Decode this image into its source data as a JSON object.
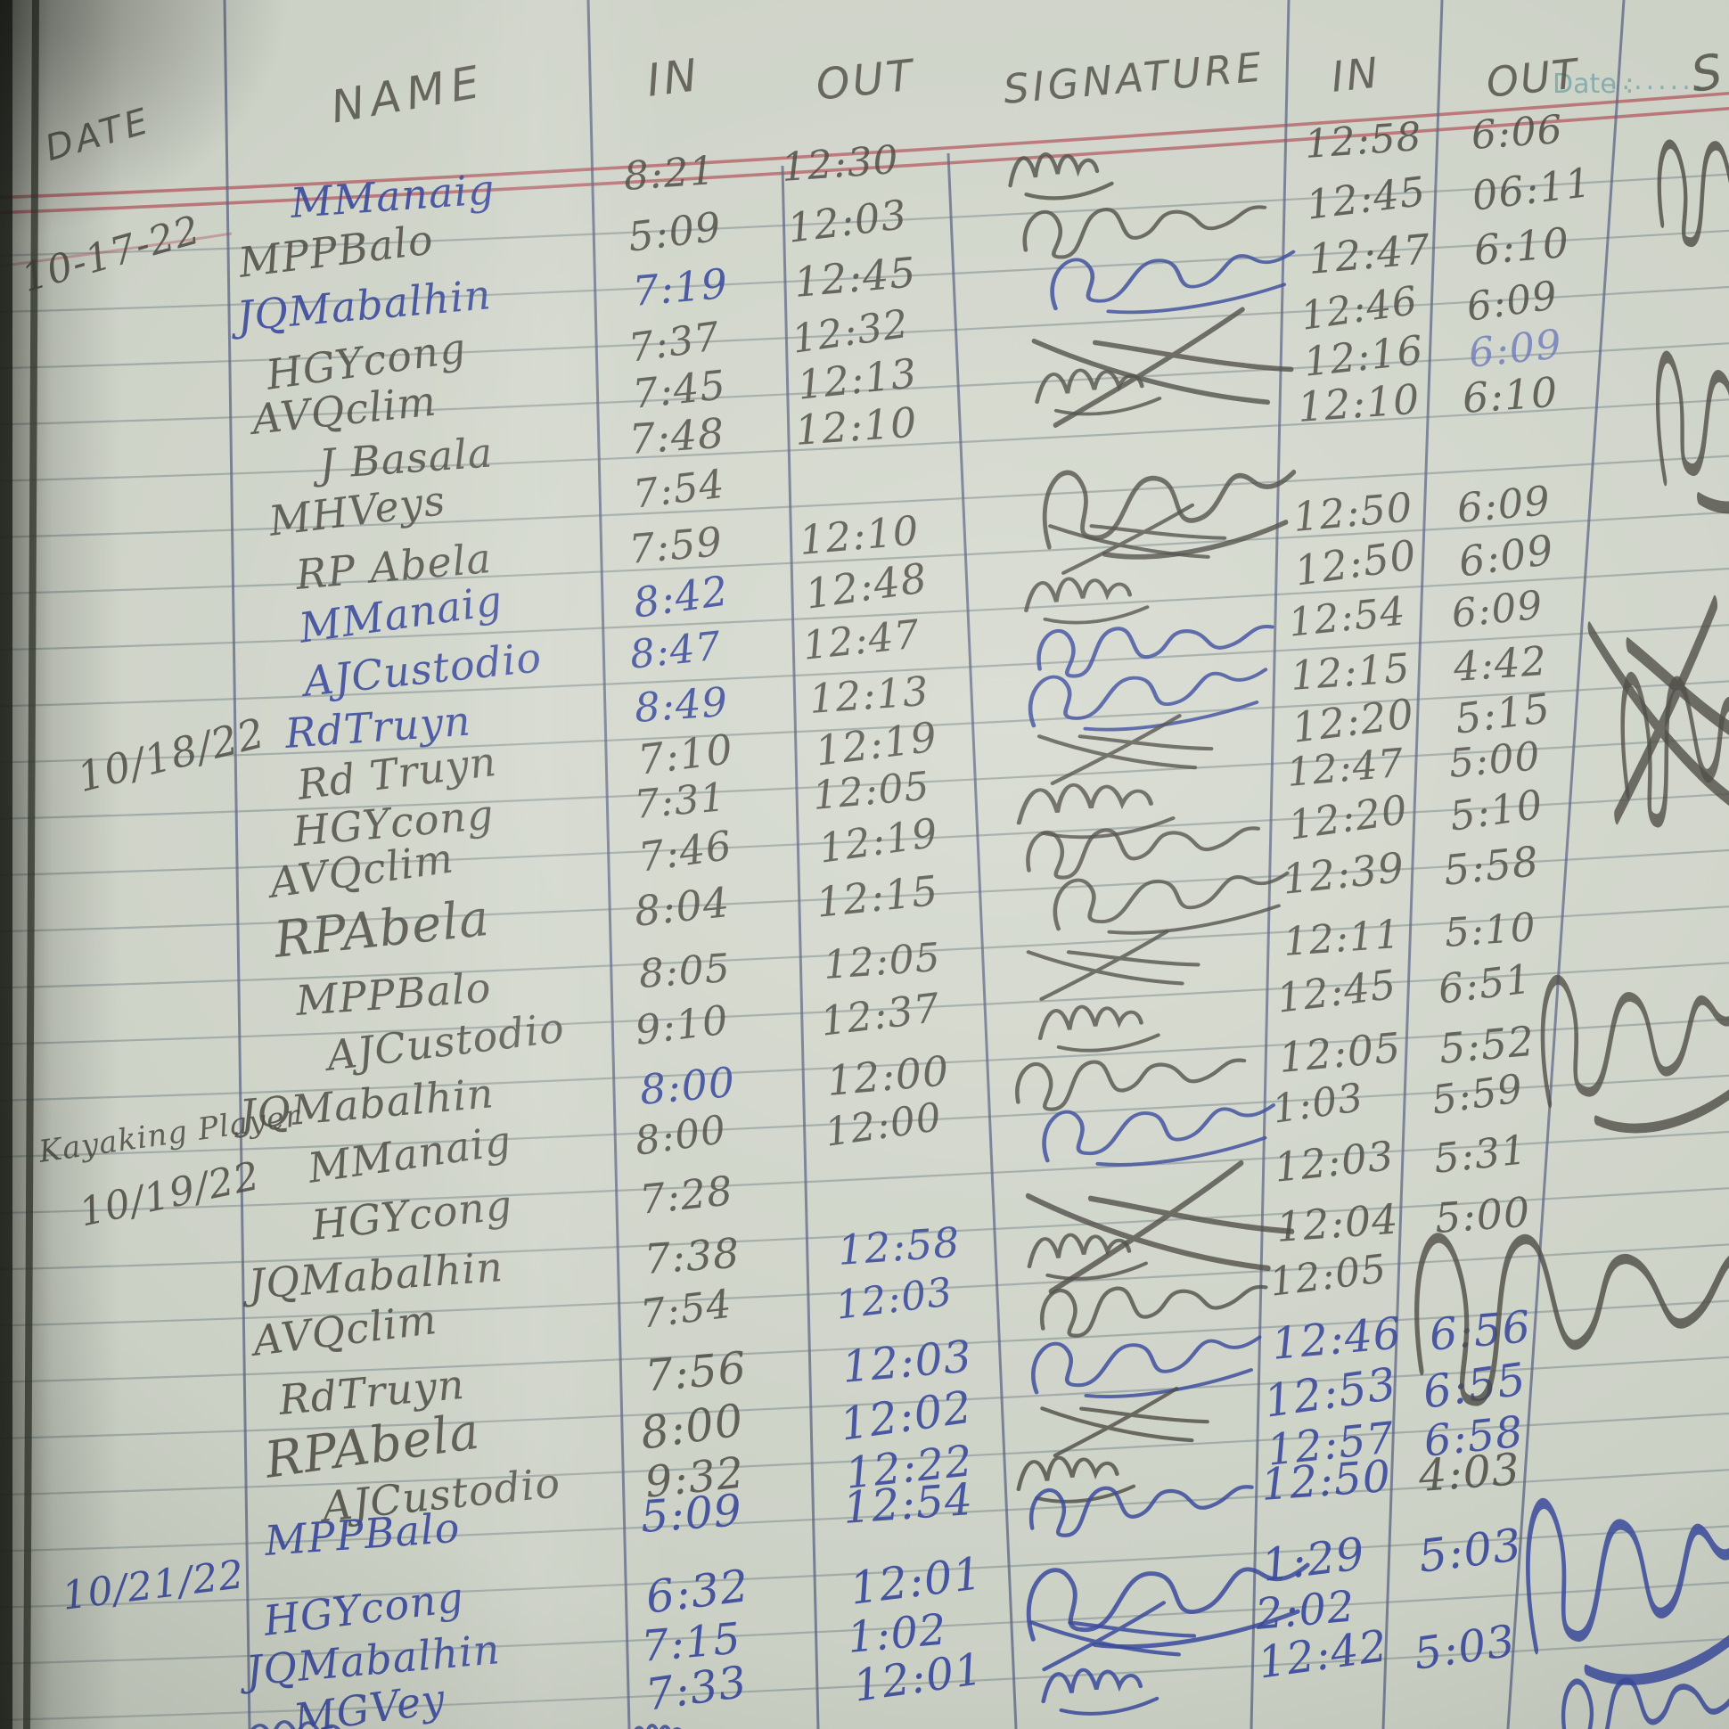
{
  "headers": {
    "date": "DATE",
    "name": "NAME",
    "in1": "IN",
    "out1": "OUT",
    "signature": "SIGNATURE",
    "in2": "IN",
    "out2": "OUT",
    "right_partial": "S"
  },
  "printed": {
    "date_label": "Date :",
    "dots": "........"
  },
  "side_labels": {
    "kayaking": "Kayaking Player"
  },
  "date_marks": [
    "10-17-22",
    "10/18/22",
    "10/19/22",
    "10/21/22"
  ],
  "palette": {
    "paper": "#ccd1c6",
    "pencil_ink": "#4a4942",
    "pen_blue_ink": "#3a4a9b",
    "light_blue_ink": "#6673b8",
    "rule_line": "#95a09e",
    "red_margin_line": "#b5656a",
    "column_line": "#5a6384",
    "printed_teal": "#6fa0a4"
  },
  "rows": [
    {
      "name": {
        "t": "MManaig",
        "ink": "b"
      },
      "in1": {
        "t": "8:21",
        "ink": "d"
      },
      "out1": {
        "t": "12:30",
        "ink": "d"
      },
      "sig": true,
      "sig_ink": "d",
      "in2": {
        "t": "12:58",
        "ink": "d"
      },
      "out2": {
        "t": "6:06",
        "ink": "d"
      }
    },
    {
      "name": {
        "t": "MPPBalo",
        "ink": "d"
      },
      "in1": {
        "t": "5:09",
        "ink": "d"
      },
      "out1": {
        "t": "12:03",
        "ink": "d"
      },
      "sig": true,
      "sig_ink": "d",
      "in2": {
        "t": "12:45",
        "ink": "d"
      },
      "out2": {
        "t": "06:11",
        "ink": "d"
      }
    },
    {
      "name": {
        "t": "JQMabalhin",
        "ink": "b"
      },
      "in1": {
        "t": "7:19",
        "ink": "b"
      },
      "out1": {
        "t": "12:45",
        "ink": "d"
      },
      "sig": true,
      "sig_ink": "b",
      "in2": {
        "t": "12:47",
        "ink": "d"
      },
      "out2": {
        "t": "6:10",
        "ink": "d"
      }
    },
    {
      "name": {
        "t": "HGYcong",
        "ink": "d"
      },
      "in1": {
        "t": "7:37",
        "ink": "d"
      },
      "out1": {
        "t": "12:32",
        "ink": "d"
      },
      "sig": true,
      "sig_ink": "d",
      "in2": {
        "t": "12:46",
        "ink": "d"
      },
      "out2": {
        "t": "6:09",
        "ink": "d"
      }
    },
    {
      "name": {
        "t": "AVQclim",
        "ink": "d"
      },
      "in1": {
        "t": "7:45",
        "ink": "d"
      },
      "out1": {
        "t": "12:13",
        "ink": "d"
      },
      "sig": true,
      "sig_ink": "d",
      "in2": {
        "t": "12:16",
        "ink": "d"
      },
      "out2": {
        "t": "6:09",
        "ink": "lb"
      }
    },
    {
      "name": {
        "t": "J Basala",
        "ink": "d"
      },
      "in1": {
        "t": "7:48",
        "ink": "d"
      },
      "out1": {
        "t": "12:10",
        "ink": "d"
      },
      "sig": false,
      "sig_ink": "d",
      "in2": {
        "t": "12:10",
        "ink": "d"
      },
      "out2": {
        "t": "6:10",
        "ink": "d"
      }
    },
    {
      "name": {
        "t": "MHVeys",
        "ink": "d"
      },
      "in1": {
        "t": "7:54",
        "ink": "d"
      },
      "out1": null,
      "sig": true,
      "sig_ink": "d",
      "in2": null,
      "out2": null
    },
    {
      "name": {
        "t": "RP Abela",
        "ink": "d"
      },
      "in1": {
        "t": "7:59",
        "ink": "d"
      },
      "out1": {
        "t": "12:10",
        "ink": "d"
      },
      "sig": true,
      "sig_ink": "d",
      "in2": {
        "t": "12:50",
        "ink": "d"
      },
      "out2": {
        "t": "6:09",
        "ink": "d"
      }
    },
    {
      "name": {
        "t": "MManaig",
        "ink": "b"
      },
      "in1": {
        "t": "8:42",
        "ink": "b"
      },
      "out1": {
        "t": "12:48",
        "ink": "d"
      },
      "sig": true,
      "sig_ink": "d",
      "in2": {
        "t": "12:50",
        "ink": "d"
      },
      "out2": {
        "t": "6:09",
        "ink": "d"
      }
    },
    {
      "name": {
        "t": "AJCustodio",
        "ink": "b"
      },
      "in1": {
        "t": "8:47",
        "ink": "b"
      },
      "out1": {
        "t": "12:47",
        "ink": "d"
      },
      "sig": true,
      "sig_ink": "b",
      "in2": {
        "t": "12:54",
        "ink": "d"
      },
      "out2": {
        "t": "6:09",
        "ink": "d"
      }
    },
    {
      "name": {
        "t": "RdTruyn",
        "ink": "b"
      },
      "in1": {
        "t": "8:49",
        "ink": "b"
      },
      "out1": {
        "t": "12:13",
        "ink": "d"
      },
      "sig": true,
      "sig_ink": "b",
      "in2": {
        "t": "12:15",
        "ink": "d"
      },
      "out2": {
        "t": "4:42",
        "ink": "d"
      }
    },
    {
      "name": {
        "t": "Rd Truyn",
        "ink": "d"
      },
      "in1": {
        "t": "7:10",
        "ink": "d"
      },
      "out1": {
        "t": "12:19",
        "ink": "d"
      },
      "sig": true,
      "sig_ink": "d",
      "in2": {
        "t": "12:20",
        "ink": "d"
      },
      "out2": {
        "t": "5:15",
        "ink": "d"
      }
    },
    {
      "name": {
        "t": "HGYcong",
        "ink": "d"
      },
      "in1": {
        "t": "7:31",
        "ink": "d"
      },
      "out1": {
        "t": "12:05",
        "ink": "d"
      },
      "sig": true,
      "sig_ink": "d",
      "in2": {
        "t": "12:47",
        "ink": "d"
      },
      "out2": {
        "t": "5:00",
        "ink": "d"
      }
    },
    {
      "name": {
        "t": "AVQclim",
        "ink": "d"
      },
      "in1": {
        "t": "7:46",
        "ink": "d"
      },
      "out1": {
        "t": "12:19",
        "ink": "d"
      },
      "sig": true,
      "sig_ink": "d",
      "in2": {
        "t": "12:20",
        "ink": "d"
      },
      "out2": {
        "t": "5:10",
        "ink": "d"
      }
    },
    {
      "name": {
        "t": "RPAbela",
        "ink": "d"
      },
      "in1": {
        "t": "8:04",
        "ink": "d"
      },
      "out1": {
        "t": "12:15",
        "ink": "d"
      },
      "sig": true,
      "sig_ink": "d",
      "in2": {
        "t": "12:39",
        "ink": "d"
      },
      "out2": {
        "t": "5:58",
        "ink": "d"
      }
    },
    {
      "name": {
        "t": "MPPBalo",
        "ink": "d"
      },
      "in1": {
        "t": "8:05",
        "ink": "d"
      },
      "out1": {
        "t": "12:05",
        "ink": "d"
      },
      "sig": true,
      "sig_ink": "d",
      "in2": {
        "t": "12:11",
        "ink": "d"
      },
      "out2": {
        "t": "5:10",
        "ink": "d"
      }
    },
    {
      "name": {
        "t": "AJCustodio",
        "ink": "d"
      },
      "in1": {
        "t": "9:10",
        "ink": "d"
      },
      "out1": {
        "t": "12:37",
        "ink": "d"
      },
      "sig": true,
      "sig_ink": "d",
      "in2": {
        "t": "12:45",
        "ink": "d"
      },
      "out2": {
        "t": "6:51",
        "ink": "d"
      }
    },
    {
      "name": {
        "t": "JQMabalhin",
        "ink": "d"
      },
      "in1": {
        "t": "8:00",
        "ink": "b"
      },
      "out1": {
        "t": "12:00",
        "ink": "d"
      },
      "sig": true,
      "sig_ink": "d",
      "in2": {
        "t": "12:05",
        "ink": "d"
      },
      "out2": {
        "t": "5:52",
        "ink": "d"
      }
    },
    {
      "name": {
        "t": "MManaig",
        "ink": "d"
      },
      "in1": {
        "t": "8:00",
        "ink": "d"
      },
      "out1": {
        "t": "12:00",
        "ink": "d"
      },
      "sig": true,
      "sig_ink": "b",
      "in2": {
        "t": "1:03",
        "ink": "d"
      },
      "out2": {
        "t": "5:59",
        "ink": "d"
      }
    },
    {
      "name": {
        "t": "HGYcong",
        "ink": "d"
      },
      "in1": {
        "t": "7:28",
        "ink": "d"
      },
      "out1": null,
      "sig": true,
      "sig_ink": "d",
      "in2": {
        "t": "12:03",
        "ink": "d"
      },
      "out2": {
        "t": "5:31",
        "ink": "d"
      }
    },
    {
      "name": {
        "t": "JQMabalhin",
        "ink": "d"
      },
      "in1": {
        "t": "7:38",
        "ink": "d"
      },
      "out1": {
        "t": "12:58",
        "ink": "b"
      },
      "sig": true,
      "sig_ink": "d",
      "in2": {
        "t": "12:04",
        "ink": "d"
      },
      "out2": {
        "t": "5:00",
        "ink": "d"
      }
    },
    {
      "name": {
        "t": "AVQclim",
        "ink": "d"
      },
      "in1": {
        "t": "7:54",
        "ink": "d"
      },
      "out1": {
        "t": "12:03",
        "ink": "b"
      },
      "sig": true,
      "sig_ink": "d",
      "in2": {
        "t": "12:05",
        "ink": "d"
      },
      "out2": null
    },
    {
      "name": {
        "t": "RdTruyn",
        "ink": "d"
      },
      "in1": {
        "t": "7:56",
        "ink": "d"
      },
      "out1": {
        "t": "12:03",
        "ink": "b"
      },
      "sig": true,
      "sig_ink": "b",
      "in2": {
        "t": "12:46",
        "ink": "b"
      },
      "out2": {
        "t": "6:56",
        "ink": "b"
      }
    },
    {
      "name": {
        "t": "RPAbela",
        "ink": "d"
      },
      "in1": {
        "t": "8:00",
        "ink": "d"
      },
      "out1": {
        "t": "12:02",
        "ink": "b"
      },
      "sig": true,
      "sig_ink": "d",
      "in2": {
        "t": "12:53",
        "ink": "b"
      },
      "out2": {
        "t": "6:55",
        "ink": "b"
      }
    },
    {
      "name": {
        "t": "AJCustodio",
        "ink": "d"
      },
      "in1": {
        "t": "9:32",
        "ink": "d"
      },
      "out1": {
        "t": "12:22",
        "ink": "b"
      },
      "sig": true,
      "sig_ink": "d",
      "in2": {
        "t": "12:57",
        "ink": "b"
      },
      "out2": {
        "t": "6:58",
        "ink": "b"
      }
    },
    {
      "name": {
        "t": "MPPBalo",
        "ink": "b"
      },
      "in1": {
        "t": "5:09",
        "ink": "b"
      },
      "out1": {
        "t": "12:54",
        "ink": "b"
      },
      "sig": true,
      "sig_ink": "b",
      "in2": {
        "t": "12:50",
        "ink": "b"
      },
      "out2": {
        "t": "4:03",
        "ink": "d"
      }
    },
    {
      "name": {
        "t": "HGYcong",
        "ink": "b"
      },
      "in1": {
        "t": "6:32",
        "ink": "b"
      },
      "out1": {
        "t": "12:01",
        "ink": "b"
      },
      "sig": true,
      "sig_ink": "b",
      "in2": {
        "t": "1:29",
        "ink": "b"
      },
      "out2": {
        "t": "5:03",
        "ink": "b"
      }
    },
    {
      "name": {
        "t": "JQMabalhin",
        "ink": "b"
      },
      "in1": {
        "t": "7:15",
        "ink": "b"
      },
      "out1": {
        "t": "1:02",
        "ink": "b"
      },
      "sig": true,
      "sig_ink": "b",
      "in2": {
        "t": "2:02",
        "ink": "b"
      },
      "out2": null
    },
    {
      "name": {
        "t": "MGVey",
        "ink": "b"
      },
      "in1": {
        "t": "7:33",
        "ink": "b"
      },
      "out1": {
        "t": "12:01",
        "ink": "b"
      },
      "sig": true,
      "sig_ink": "b",
      "in2": {
        "t": "12:42",
        "ink": "b"
      },
      "out2": {
        "t": "5:03",
        "ink": "b"
      }
    }
  ]
}
